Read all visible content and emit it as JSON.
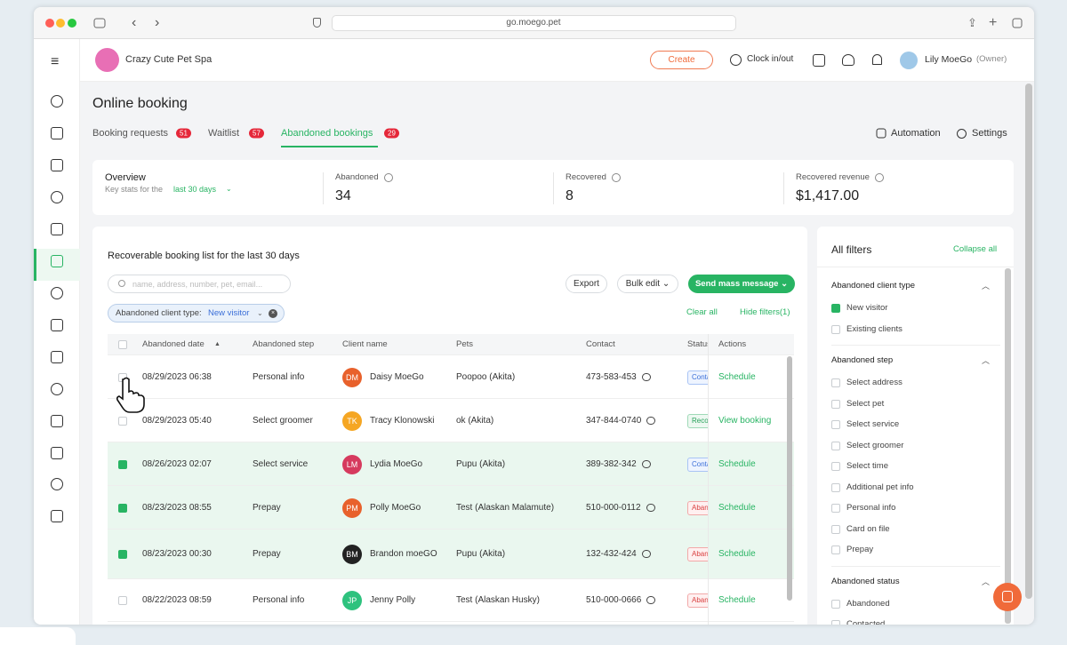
{
  "browser": {
    "url": "go.moego.pet"
  },
  "header": {
    "business": "Crazy Cute Pet Spa",
    "create": "Create",
    "clock": "Clock in/out",
    "user": "Lily MoeGo",
    "role": "(Owner)"
  },
  "page": {
    "title": "Online booking",
    "tabs": [
      {
        "label": "Booking requests",
        "count": 51
      },
      {
        "label": "Waitlist",
        "count": 57
      },
      {
        "label": "Abandoned bookings",
        "count": 29
      }
    ],
    "automation": "Automation",
    "settings": "Settings"
  },
  "overview": {
    "title": "Overview",
    "subtitle": "Key stats for the",
    "period": "last 30 days",
    "stats": [
      {
        "label": "Abandoned",
        "value": 34
      },
      {
        "label": "Recovered",
        "value": 8
      },
      {
        "label": "Recovered revenue",
        "value": "$1,417.00"
      }
    ]
  },
  "list": {
    "title": "Recoverable booking list for the last 30 days",
    "search_placeholder": "name, address, number, pet, email...",
    "export": "Export",
    "bulk_edit": "Bulk edit",
    "send": "Send mass message",
    "chip_label": "Abandoned client type:",
    "chip_value": "New visitor",
    "clear_all": "Clear all",
    "hide_filters": "Hide filters(1)",
    "columns": [
      "Abandoned date",
      "Abandoned step",
      "Client name",
      "Pets",
      "Contact",
      "Status",
      "Actions"
    ],
    "rows": [
      {
        "date": "08/29/2023 06:38",
        "step": "Personal info",
        "initials": "DM",
        "color": "#e8612c",
        "name": "Daisy MoeGo",
        "pets": "Poopoo (Akita)",
        "contact": "473-583-453",
        "status": "Contacted",
        "action": "Schedule",
        "checked": false
      },
      {
        "date": "08/29/2023 05:40",
        "step": "Select groomer",
        "initials": "TK",
        "color": "#f5a623",
        "name": "Tracy Klonowski",
        "pets": "ok (Akita)",
        "contact": "347-844-0740",
        "status": "Recovered",
        "action": "View booking",
        "checked": false
      },
      {
        "date": "08/26/2023 02:07",
        "step": "Select service",
        "initials": "LM",
        "color": "#d63a5e",
        "name": "Lydia MoeGo",
        "pets": "Pupu (Akita)",
        "contact": "389-382-342",
        "status": "Contacted",
        "action": "Schedule",
        "checked": true
      },
      {
        "date": "08/23/2023 08:55",
        "step": "Prepay",
        "initials": "PM",
        "color": "#e8612c",
        "name": "Polly MoeGo",
        "pets": "Test (Alaskan Malamute)",
        "contact": "510-000-0112",
        "status": "Abandoned",
        "action": "Schedule",
        "checked": true
      },
      {
        "date": "08/23/2023 00:30",
        "step": "Prepay",
        "initials": "BM",
        "color": "#222222",
        "name": "Brandon moeGO",
        "pets": "Pupu (Akita)",
        "contact": "132-432-424",
        "status": "Abandoned",
        "action": "Schedule",
        "checked": true
      },
      {
        "date": "08/22/2023 08:59",
        "step": "Personal info",
        "initials": "JP",
        "color": "#2ec27e",
        "name": "Jenny Polly",
        "pets": "Test (Alaskan Husky)",
        "contact": "510-000-0666",
        "status": "Abandoned",
        "action": "Schedule",
        "checked": false
      }
    ]
  },
  "filters": {
    "title": "All filters",
    "collapse": "Collapse all",
    "groups": [
      {
        "title": "Abandoned client type",
        "options": [
          {
            "label": "New visitor",
            "checked": true
          },
          {
            "label": "Existing clients",
            "checked": false
          }
        ]
      },
      {
        "title": "Abandoned step",
        "options": [
          {
            "label": "Select address",
            "checked": false
          },
          {
            "label": "Select pet",
            "checked": false
          },
          {
            "label": "Select service",
            "checked": false
          },
          {
            "label": "Select groomer",
            "checked": false
          },
          {
            "label": "Select time",
            "checked": false
          },
          {
            "label": "Additional pet info",
            "checked": false
          },
          {
            "label": "Personal info",
            "checked": false
          },
          {
            "label": "Card on file",
            "checked": false
          },
          {
            "label": "Prepay",
            "checked": false
          }
        ]
      },
      {
        "title": "Abandoned status",
        "options": [
          {
            "label": "Abandoned",
            "checked": false
          },
          {
            "label": "Contacted",
            "checked": false
          }
        ]
      }
    ]
  }
}
